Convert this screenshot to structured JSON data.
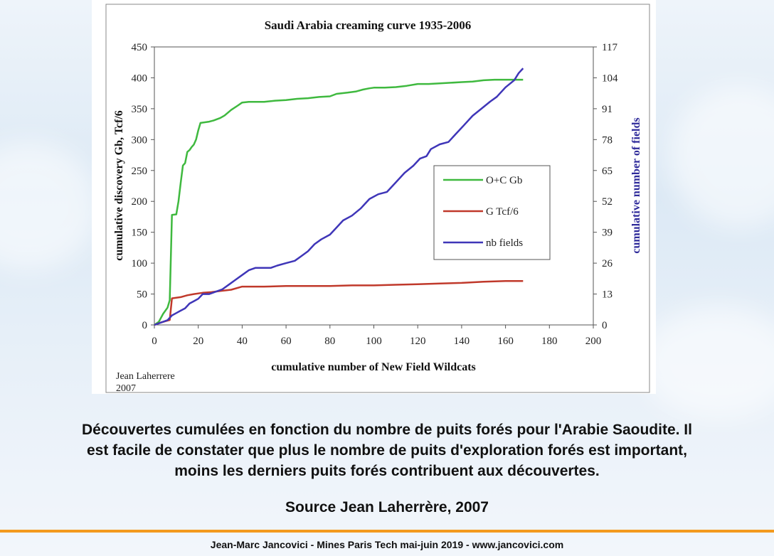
{
  "chart_data": {
    "type": "line",
    "title": "Saudi Arabia creaming curve 1935-2006",
    "xlabel": "cumulative number of New Field Wildcats",
    "ylabel": "cumulative discovery Gb, Tcf/6",
    "y2label": "cumulative number of fields",
    "xlim": [
      0,
      200
    ],
    "ylim": [
      0,
      450
    ],
    "y2lim": [
      0,
      117
    ],
    "xticks": [
      0,
      20,
      40,
      60,
      80,
      100,
      120,
      140,
      160,
      180,
      200
    ],
    "yticks": [
      0,
      50,
      100,
      150,
      200,
      250,
      300,
      350,
      400,
      450
    ],
    "y2ticks": [
      0,
      13,
      26,
      39,
      52,
      65,
      78,
      91,
      104,
      117
    ],
    "grid": "none",
    "legend_position": "right",
    "series": [
      {
        "name": "O+C Gb",
        "axis": "left",
        "color": "#3fb93f",
        "points": [
          [
            0,
            0
          ],
          [
            2,
            5
          ],
          [
            4,
            18
          ],
          [
            6,
            28
          ],
          [
            7,
            40
          ],
          [
            8,
            178
          ],
          [
            10,
            179
          ],
          [
            11,
            200
          ],
          [
            12,
            230
          ],
          [
            13,
            258
          ],
          [
            14,
            262
          ],
          [
            15,
            280
          ],
          [
            16,
            283
          ],
          [
            17,
            288
          ],
          [
            18,
            292
          ],
          [
            19,
            300
          ],
          [
            20,
            315
          ],
          [
            21,
            327
          ],
          [
            23,
            328
          ],
          [
            25,
            329
          ],
          [
            27,
            331
          ],
          [
            30,
            335
          ],
          [
            32,
            339
          ],
          [
            35,
            348
          ],
          [
            38,
            355
          ],
          [
            40,
            360
          ],
          [
            43,
            361
          ],
          [
            50,
            361
          ],
          [
            55,
            363
          ],
          [
            60,
            364
          ],
          [
            65,
            366
          ],
          [
            70,
            367
          ],
          [
            75,
            369
          ],
          [
            80,
            370
          ],
          [
            83,
            374
          ],
          [
            88,
            376
          ],
          [
            92,
            378
          ],
          [
            95,
            381
          ],
          [
            98,
            383
          ],
          [
            100,
            384
          ],
          [
            105,
            384
          ],
          [
            110,
            385
          ],
          [
            115,
            387
          ],
          [
            120,
            390
          ],
          [
            125,
            390
          ],
          [
            130,
            391
          ],
          [
            135,
            392
          ],
          [
            140,
            393
          ],
          [
            145,
            394
          ],
          [
            150,
            396
          ],
          [
            155,
            397
          ],
          [
            160,
            397
          ],
          [
            165,
            397
          ],
          [
            168,
            397
          ]
        ]
      },
      {
        "name": "G Tcf/6",
        "axis": "left",
        "color": "#c0392b",
        "points": [
          [
            0,
            0
          ],
          [
            3,
            4
          ],
          [
            5,
            6
          ],
          [
            7,
            8
          ],
          [
            8,
            43
          ],
          [
            10,
            44
          ],
          [
            12,
            45
          ],
          [
            15,
            48
          ],
          [
            18,
            50
          ],
          [
            22,
            52
          ],
          [
            26,
            53
          ],
          [
            30,
            55
          ],
          [
            35,
            57
          ],
          [
            40,
            62
          ],
          [
            42,
            62
          ],
          [
            50,
            62
          ],
          [
            60,
            63
          ],
          [
            70,
            63
          ],
          [
            80,
            63
          ],
          [
            90,
            64
          ],
          [
            100,
            64
          ],
          [
            110,
            65
          ],
          [
            120,
            66
          ],
          [
            130,
            67
          ],
          [
            140,
            68
          ],
          [
            150,
            70
          ],
          [
            160,
            71
          ],
          [
            168,
            71
          ]
        ]
      },
      {
        "name": "nb fields",
        "axis": "right",
        "color": "#3f36b8",
        "points": [
          [
            0,
            0
          ],
          [
            3,
            1
          ],
          [
            6,
            2
          ],
          [
            8,
            4
          ],
          [
            10,
            5
          ],
          [
            12,
            6
          ],
          [
            14,
            7
          ],
          [
            16,
            9
          ],
          [
            18,
            10
          ],
          [
            20,
            11
          ],
          [
            22,
            13
          ],
          [
            25,
            13
          ],
          [
            28,
            14
          ],
          [
            31,
            15
          ],
          [
            34,
            17
          ],
          [
            37,
            19
          ],
          [
            40,
            21
          ],
          [
            43,
            23
          ],
          [
            46,
            24
          ],
          [
            50,
            24
          ],
          [
            53,
            24
          ],
          [
            56,
            25
          ],
          [
            60,
            26
          ],
          [
            64,
            27
          ],
          [
            67,
            29
          ],
          [
            70,
            31
          ],
          [
            73,
            34
          ],
          [
            76,
            36
          ],
          [
            80,
            38
          ],
          [
            83,
            41
          ],
          [
            86,
            44
          ],
          [
            90,
            46
          ],
          [
            94,
            49
          ],
          [
            98,
            53
          ],
          [
            102,
            55
          ],
          [
            106,
            56
          ],
          [
            110,
            60
          ],
          [
            114,
            64
          ],
          [
            118,
            67
          ],
          [
            121,
            70
          ],
          [
            124,
            71
          ],
          [
            126,
            74
          ],
          [
            130,
            76
          ],
          [
            134,
            77
          ],
          [
            137,
            80
          ],
          [
            141,
            84
          ],
          [
            145,
            88
          ],
          [
            149,
            91
          ],
          [
            153,
            94
          ],
          [
            156,
            96
          ],
          [
            160,
            100
          ],
          [
            164,
            103
          ],
          [
            166,
            106
          ],
          [
            168,
            108
          ]
        ]
      }
    ],
    "annotation": "Jean Laherrere\n2007"
  },
  "caption": {
    "main_lines": [
      "Découvertes cumulées en fonction du nombre de puits forés pour l'Arabie Saoudite. Il",
      "est facile de constater que plus le nombre de puits d'exploration forés est important,",
      "moins les derniers puits forés contribuent aux découvertes."
    ],
    "source": "Source Jean Laherrère, 2007"
  },
  "footer": "Jean-Marc Jancovici - Mines Paris Tech mai-juin 2019 - www.jancovici.com",
  "colors": {
    "footer_rule": "#f39a1e",
    "frame": "#555555"
  }
}
